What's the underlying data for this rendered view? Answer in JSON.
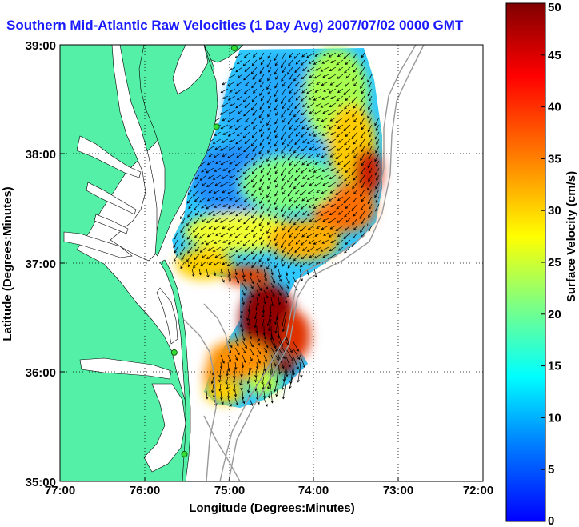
{
  "title": "Southern Mid-Atlantic Raw Velocities (1 Day Avg) 2007/07/02 0000 GMT",
  "x_axis": {
    "label": "Longitude (Degrees:Minutes)",
    "ticks": [
      "77:00",
      "76:00",
      "75:00",
      "74:00",
      "73:00",
      "72:00"
    ]
  },
  "y_axis": {
    "label": "Latitude (Degrees:Minutes)",
    "ticks": [
      "39:00",
      "38:00",
      "37:00",
      "36:00",
      "35:00"
    ]
  },
  "colorbar": {
    "label": "Surface Velocity (cm/s)",
    "ticks": [
      "50",
      "45",
      "40",
      "35",
      "30",
      "25",
      "20",
      "15",
      "10",
      "5",
      "0"
    ],
    "min": 0,
    "max": 50,
    "colormap": [
      "#0000ff",
      "#0080ff",
      "#00ffff",
      "#80ff80",
      "#ffff00",
      "#ff8000",
      "#ff0000",
      "#800000"
    ]
  },
  "colors": {
    "land": "#55f0a8",
    "ocean": "#ffffff",
    "coast": "#000000",
    "bathymetry": "#999999",
    "station": "#33dd33",
    "vector": "#000000"
  },
  "map_extent": {
    "lon": [
      -77,
      -72
    ],
    "lat": [
      35,
      39
    ]
  },
  "stations": [
    {
      "lon": -74.94,
      "lat": 38.97
    },
    {
      "lon": -75.15,
      "lat": 38.25
    },
    {
      "lon": -75.65,
      "lat": 36.18
    },
    {
      "lon": -75.53,
      "lat": 35.25
    }
  ]
}
